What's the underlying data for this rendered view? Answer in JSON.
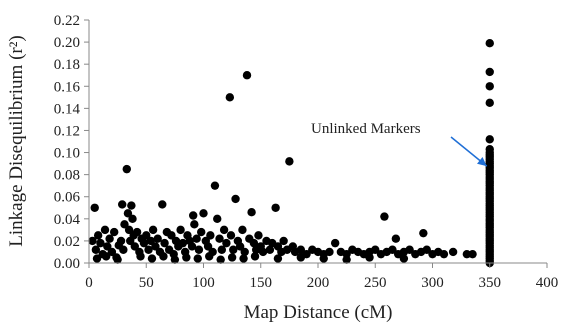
{
  "chart_data": {
    "type": "scatter",
    "title": "",
    "xlabel": "Map Distance (cM)",
    "ylabel": "Linkage Disequilibrium (r²)",
    "xlim": [
      0,
      400
    ],
    "ylim": [
      0,
      0.22
    ],
    "x_ticks": [
      0,
      50,
      100,
      150,
      200,
      250,
      300,
      350,
      400
    ],
    "y_ticks": [
      0.0,
      0.02,
      0.04,
      0.06,
      0.08,
      0.1,
      0.12,
      0.14,
      0.16,
      0.18,
      0.2,
      0.22
    ],
    "x_tick_labels": [
      "0",
      "50",
      "100",
      "150",
      "200",
      "250",
      "300",
      "350",
      "400"
    ],
    "y_tick_labels": [
      "0.00",
      "0.02",
      "0.04",
      "0.06",
      "0.08",
      "0.10",
      "0.12",
      "0.14",
      "0.16",
      "0.18",
      "0.20",
      "0.22"
    ],
    "grid": false,
    "marker_color": "#000000",
    "arrow_color": "#1f6fd6",
    "annotation": {
      "text": "Unlinked Markers",
      "points_to": {
        "x": 350,
        "y": 0.085
      }
    },
    "series": [
      {
        "points": [
          [
            5,
            0.05
          ],
          [
            3,
            0.02
          ],
          [
            6,
            0.012
          ],
          [
            8,
            0.025
          ],
          [
            10,
            0.018
          ],
          [
            12,
            0.008
          ],
          [
            14,
            0.03
          ],
          [
            16,
            0.015
          ],
          [
            18,
            0.022
          ],
          [
            20,
            0.01
          ],
          [
            22,
            0.028
          ],
          [
            24,
            0.005
          ],
          [
            26,
            0.016
          ],
          [
            28,
            0.02
          ],
          [
            29,
            0.053
          ],
          [
            30,
            0.012
          ],
          [
            31,
            0.035
          ],
          [
            33,
            0.085
          ],
          [
            34,
            0.045
          ],
          [
            35,
            0.03
          ],
          [
            36,
            0.02
          ],
          [
            37,
            0.052
          ],
          [
            38,
            0.04
          ],
          [
            39,
            0.025
          ],
          [
            40,
            0.015
          ],
          [
            42,
            0.028
          ],
          [
            44,
            0.01
          ],
          [
            46,
            0.022
          ],
          [
            48,
            0.018
          ],
          [
            50,
            0.025
          ],
          [
            52,
            0.012
          ],
          [
            54,
            0.02
          ],
          [
            56,
            0.03
          ],
          [
            58,
            0.015
          ],
          [
            60,
            0.022
          ],
          [
            62,
            0.01
          ],
          [
            64,
            0.053
          ],
          [
            66,
            0.018
          ],
          [
            68,
            0.028
          ],
          [
            70,
            0.012
          ],
          [
            72,
            0.025
          ],
          [
            74,
            0.008
          ],
          [
            76,
            0.02
          ],
          [
            78,
            0.015
          ],
          [
            80,
            0.03
          ],
          [
            82,
            0.018
          ],
          [
            84,
            0.01
          ],
          [
            86,
            0.025
          ],
          [
            88,
            0.02
          ],
          [
            90,
            0.015
          ],
          [
            91,
            0.043
          ],
          [
            92,
            0.035
          ],
          [
            94,
            0.022
          ],
          [
            96,
            0.012
          ],
          [
            98,
            0.028
          ],
          [
            100,
            0.045
          ],
          [
            102,
            0.02
          ],
          [
            104,
            0.015
          ],
          [
            106,
            0.025
          ],
          [
            108,
            0.01
          ],
          [
            110,
            0.07
          ],
          [
            112,
            0.04
          ],
          [
            114,
            0.022
          ],
          [
            116,
            0.012
          ],
          [
            118,
            0.03
          ],
          [
            120,
            0.018
          ],
          [
            123,
            0.15
          ],
          [
            124,
            0.025
          ],
          [
            126,
            0.012
          ],
          [
            128,
            0.058
          ],
          [
            130,
            0.02
          ],
          [
            132,
            0.015
          ],
          [
            134,
            0.03
          ],
          [
            136,
            0.01
          ],
          [
            138,
            0.17
          ],
          [
            140,
            0.022
          ],
          [
            142,
            0.046
          ],
          [
            144,
            0.018
          ],
          [
            146,
            0.012
          ],
          [
            148,
            0.025
          ],
          [
            150,
            0.015
          ],
          [
            152,
            0.01
          ],
          [
            155,
            0.02
          ],
          [
            158,
            0.012
          ],
          [
            160,
            0.018
          ],
          [
            163,
            0.05
          ],
          [
            165,
            0.015
          ],
          [
            168,
            0.01
          ],
          [
            170,
            0.02
          ],
          [
            173,
            0.012
          ],
          [
            175,
            0.092
          ],
          [
            178,
            0.015
          ],
          [
            180,
            0.01
          ],
          [
            185,
            0.012
          ],
          [
            190,
            0.008
          ],
          [
            195,
            0.012
          ],
          [
            200,
            0.01
          ],
          [
            205,
            0.008
          ],
          [
            210,
            0.01
          ],
          [
            215,
            0.018
          ],
          [
            220,
            0.01
          ],
          [
            225,
            0.008
          ],
          [
            230,
            0.012
          ],
          [
            235,
            0.01
          ],
          [
            240,
            0.008
          ],
          [
            245,
            0.01
          ],
          [
            250,
            0.012
          ],
          [
            255,
            0.008
          ],
          [
            258,
            0.042
          ],
          [
            260,
            0.01
          ],
          [
            265,
            0.012
          ],
          [
            268,
            0.022
          ],
          [
            270,
            0.008
          ],
          [
            275,
            0.01
          ],
          [
            280,
            0.012
          ],
          [
            285,
            0.008
          ],
          [
            290,
            0.01
          ],
          [
            292,
            0.027
          ],
          [
            295,
            0.012
          ],
          [
            300,
            0.008
          ],
          [
            305,
            0.01
          ],
          [
            310,
            0.008
          ],
          [
            318,
            0.01
          ],
          [
            330,
            0.008
          ],
          [
            335,
            0.008
          ],
          [
            7,
            0.004
          ],
          [
            15,
            0.006
          ],
          [
            25,
            0.003
          ],
          [
            45,
            0.006
          ],
          [
            55,
            0.004
          ],
          [
            65,
            0.006
          ],
          [
            75,
            0.003
          ],
          [
            85,
            0.005
          ],
          [
            95,
            0.004
          ],
          [
            105,
            0.006
          ],
          [
            115,
            0.003
          ],
          [
            125,
            0.005
          ],
          [
            135,
            0.004
          ],
          [
            145,
            0.006
          ],
          [
            165,
            0.004
          ],
          [
            185,
            0.005
          ],
          [
            205,
            0.004
          ],
          [
            225,
            0.003
          ],
          [
            245,
            0.005
          ],
          [
            275,
            0.004
          ],
          [
            350,
            0.0
          ],
          [
            350,
            0.002
          ],
          [
            350,
            0.004
          ],
          [
            350,
            0.006
          ],
          [
            350,
            0.008
          ],
          [
            350,
            0.01
          ],
          [
            350,
            0.012
          ],
          [
            350,
            0.014
          ],
          [
            350,
            0.016
          ],
          [
            350,
            0.018
          ],
          [
            350,
            0.02
          ],
          [
            350,
            0.022
          ],
          [
            350,
            0.024
          ],
          [
            350,
            0.026
          ],
          [
            350,
            0.028
          ],
          [
            350,
            0.03
          ],
          [
            350,
            0.032
          ],
          [
            350,
            0.034
          ],
          [
            350,
            0.036
          ],
          [
            350,
            0.038
          ],
          [
            350,
            0.04
          ],
          [
            350,
            0.042
          ],
          [
            350,
            0.044
          ],
          [
            350,
            0.046
          ],
          [
            350,
            0.048
          ],
          [
            350,
            0.05
          ],
          [
            350,
            0.052
          ],
          [
            350,
            0.054
          ],
          [
            350,
            0.056
          ],
          [
            350,
            0.058
          ],
          [
            350,
            0.06
          ],
          [
            350,
            0.062
          ],
          [
            350,
            0.064
          ],
          [
            350,
            0.066
          ],
          [
            350,
            0.068
          ],
          [
            350,
            0.07
          ],
          [
            350,
            0.072
          ],
          [
            350,
            0.074
          ],
          [
            350,
            0.076
          ],
          [
            350,
            0.078
          ],
          [
            350,
            0.08
          ],
          [
            350,
            0.082
          ],
          [
            350,
            0.084
          ],
          [
            350,
            0.086
          ],
          [
            350,
            0.088
          ],
          [
            350,
            0.09
          ],
          [
            350,
            0.092
          ],
          [
            350,
            0.094
          ],
          [
            350,
            0.096
          ],
          [
            350,
            0.098
          ],
          [
            350,
            0.1
          ],
          [
            350,
            0.103
          ],
          [
            350,
            0.112
          ],
          [
            350,
            0.145
          ],
          [
            350,
            0.16
          ],
          [
            350,
            0.173
          ],
          [
            350,
            0.199
          ]
        ]
      }
    ]
  }
}
